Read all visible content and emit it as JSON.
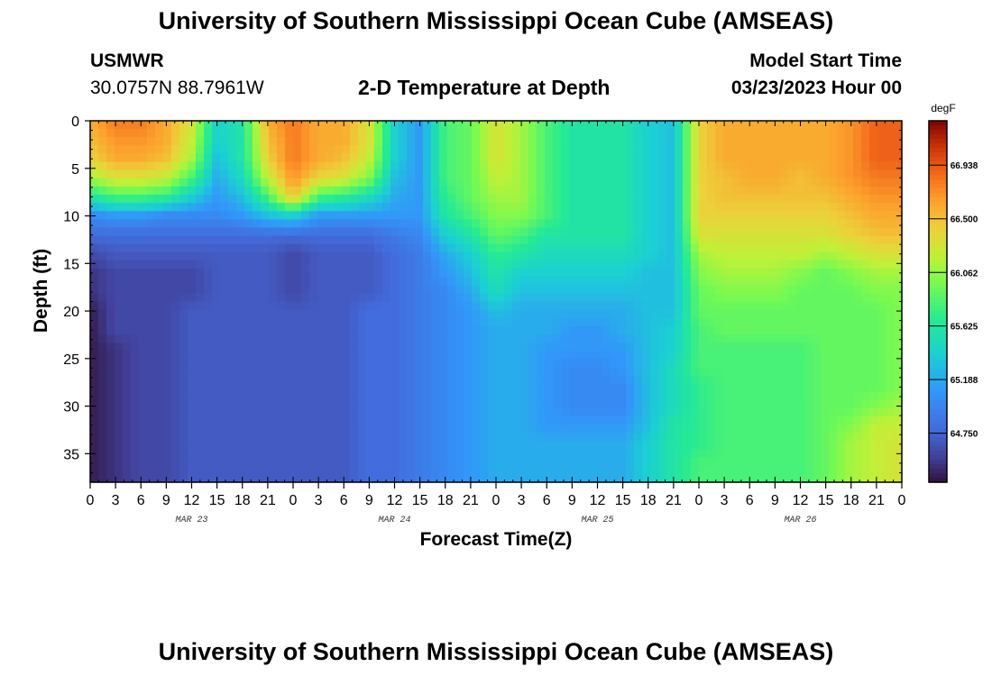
{
  "title": "University of Southern Mississippi Ocean Cube (AMSEAS)",
  "footer_title": "University of Southern Mississippi Ocean Cube (AMSEAS)",
  "station": {
    "name": "USMWR",
    "coords": "30.0757N  88.7961W"
  },
  "subtitle": "2-D Temperature at Depth",
  "model_start": {
    "label": "Model Start Time",
    "value": "03/23/2023 Hour 00"
  },
  "chart_data": {
    "type": "heatmap",
    "xlabel": "Forecast Time(Z)",
    "ylabel": "Depth (ft)",
    "x_unit": "forecast hours from model start",
    "xlim": [
      0,
      96
    ],
    "ylim": [
      0,
      38
    ],
    "y_inverted": true,
    "x_tick_labels": [
      "0",
      "3",
      "6",
      "9",
      "12",
      "15",
      "18",
      "21",
      "0",
      "3",
      "6",
      "9",
      "12",
      "15",
      "18",
      "21",
      "0",
      "3",
      "6",
      "9",
      "12",
      "15",
      "18",
      "21",
      "0",
      "3",
      "6",
      "9",
      "12",
      "15",
      "18",
      "21",
      "0"
    ],
    "y_ticks": [
      0,
      5,
      10,
      15,
      20,
      25,
      30,
      35
    ],
    "date_labels": [
      {
        "label": "MAR 23",
        "hour": 12
      },
      {
        "label": "MAR 24",
        "hour": 36
      },
      {
        "label": "MAR 25",
        "hour": 60
      },
      {
        "label": "MAR 26",
        "hour": 84
      }
    ],
    "colorbar": {
      "unit": "degF",
      "min": 64.35,
      "max": 67.3,
      "ticks": [
        66.938,
        66.5,
        66.062,
        65.625,
        65.188,
        64.75
      ],
      "tick_labels": [
        "66.938",
        "66.500",
        "66.062",
        "65.625",
        "65.188",
        "64.750"
      ]
    },
    "grid_hours": [
      0,
      3,
      6,
      9,
      12,
      15,
      18,
      21,
      24,
      27,
      30,
      33,
      36,
      39,
      42,
      45,
      48,
      51,
      54,
      57,
      60,
      63,
      66,
      69,
      72,
      75,
      78,
      81,
      84,
      87,
      90,
      93,
      96
    ],
    "grid_depths_ft": [
      0,
      2,
      4,
      6,
      8,
      10,
      12,
      14,
      16,
      18,
      20,
      22,
      24,
      26,
      28,
      30,
      32,
      34,
      36,
      38
    ],
    "values_degF": [
      [
        66.6,
        66.8,
        66.8,
        66.6,
        66.3,
        65.4,
        65.6,
        66.6,
        66.8,
        66.6,
        66.6,
        66.3,
        65.4,
        65.1,
        65.8,
        65.9,
        66.3,
        66.1,
        65.8,
        65.6,
        65.6,
        65.6,
        65.4,
        65.3,
        66.4,
        66.6,
        66.6,
        66.6,
        66.6,
        66.6,
        66.7,
        66.9,
        66.9
      ],
      [
        66.5,
        66.7,
        66.7,
        66.6,
        66.2,
        65.4,
        65.6,
        66.5,
        66.8,
        66.6,
        66.6,
        66.3,
        65.4,
        65.1,
        65.8,
        65.9,
        66.3,
        66.1,
        65.8,
        65.6,
        65.6,
        65.6,
        65.4,
        65.3,
        66.4,
        66.6,
        66.6,
        66.6,
        66.6,
        66.6,
        66.7,
        66.9,
        66.9
      ],
      [
        66.4,
        66.6,
        66.6,
        66.5,
        66.1,
        65.3,
        65.6,
        66.4,
        66.8,
        66.6,
        66.5,
        66.2,
        65.4,
        65.1,
        65.8,
        65.9,
        66.3,
        66.1,
        65.8,
        65.6,
        65.6,
        65.6,
        65.4,
        65.3,
        66.4,
        66.6,
        66.6,
        66.6,
        66.6,
        66.6,
        66.7,
        66.9,
        66.9
      ],
      [
        66.1,
        66.3,
        66.3,
        66.2,
        65.8,
        65.2,
        65.5,
        66.2,
        66.7,
        66.4,
        66.3,
        66.0,
        65.3,
        65.1,
        65.8,
        65.9,
        66.2,
        66.1,
        65.8,
        65.6,
        65.6,
        65.6,
        65.4,
        65.3,
        66.4,
        66.5,
        66.6,
        66.6,
        66.5,
        66.6,
        66.7,
        66.8,
        66.8
      ],
      [
        65.6,
        65.8,
        65.8,
        65.7,
        65.4,
        65.1,
        65.3,
        65.8,
        66.5,
        65.8,
        65.7,
        65.5,
        65.2,
        65.1,
        65.7,
        65.9,
        66.1,
        66.1,
        65.8,
        65.6,
        65.6,
        65.6,
        65.4,
        65.3,
        66.4,
        66.5,
        66.5,
        66.5,
        66.5,
        66.5,
        66.6,
        66.7,
        66.7
      ],
      [
        65.0,
        65.1,
        65.1,
        65.0,
        65.0,
        65.0,
        65.1,
        65.3,
        65.4,
        65.1,
        65.1,
        65.1,
        65.1,
        65.1,
        65.6,
        65.8,
        66.0,
        66.0,
        65.8,
        65.6,
        65.6,
        65.6,
        65.4,
        65.3,
        66.4,
        66.4,
        66.4,
        66.4,
        66.4,
        66.4,
        66.5,
        66.6,
        66.6
      ],
      [
        64.8,
        64.8,
        64.8,
        64.8,
        64.8,
        64.8,
        64.8,
        64.8,
        64.8,
        64.8,
        64.8,
        64.8,
        64.9,
        65.0,
        65.4,
        65.6,
        65.9,
        65.8,
        65.6,
        65.6,
        65.6,
        65.6,
        65.4,
        65.3,
        66.3,
        66.3,
        66.3,
        66.3,
        66.3,
        66.3,
        66.4,
        66.5,
        66.5
      ],
      [
        64.6,
        64.7,
        64.7,
        64.7,
        64.7,
        64.7,
        64.7,
        64.7,
        64.6,
        64.7,
        64.7,
        64.7,
        64.8,
        64.9,
        65.2,
        65.4,
        65.7,
        65.6,
        65.5,
        65.5,
        65.5,
        65.5,
        65.4,
        65.3,
        66.1,
        66.2,
        66.2,
        66.2,
        66.2,
        66.1,
        66.2,
        66.3,
        66.3
      ],
      [
        64.5,
        64.6,
        64.6,
        64.6,
        64.6,
        64.7,
        64.7,
        64.7,
        64.6,
        64.7,
        64.7,
        64.7,
        64.8,
        64.9,
        65.1,
        65.3,
        65.6,
        65.4,
        65.4,
        65.4,
        65.4,
        65.4,
        65.3,
        65.3,
        66.0,
        66.1,
        66.1,
        66.1,
        66.0,
        65.9,
        66.0,
        66.1,
        66.1
      ],
      [
        64.5,
        64.6,
        64.6,
        64.6,
        64.6,
        64.7,
        64.7,
        64.7,
        64.6,
        64.7,
        64.7,
        64.7,
        64.8,
        64.9,
        65.0,
        65.2,
        65.5,
        65.3,
        65.3,
        65.3,
        65.3,
        65.3,
        65.3,
        65.3,
        65.9,
        66.0,
        66.0,
        66.0,
        65.9,
        65.9,
        65.9,
        66.0,
        66.0
      ],
      [
        64.4,
        64.6,
        64.6,
        64.6,
        64.7,
        64.7,
        64.7,
        64.7,
        64.7,
        64.7,
        64.7,
        64.8,
        64.8,
        64.9,
        65.0,
        65.1,
        65.3,
        65.2,
        65.2,
        65.2,
        65.2,
        65.2,
        65.3,
        65.3,
        65.9,
        65.9,
        65.9,
        65.9,
        65.9,
        65.9,
        65.9,
        65.9,
        66.0
      ],
      [
        64.4,
        64.6,
        64.6,
        64.6,
        64.7,
        64.7,
        64.7,
        64.7,
        64.7,
        64.7,
        64.7,
        64.8,
        64.8,
        64.9,
        65.0,
        65.1,
        65.2,
        65.2,
        65.2,
        65.1,
        65.1,
        65.2,
        65.3,
        65.4,
        65.8,
        65.9,
        65.9,
        65.9,
        65.9,
        65.9,
        65.9,
        65.9,
        66.0
      ],
      [
        64.4,
        64.5,
        64.6,
        64.6,
        64.7,
        64.7,
        64.7,
        64.7,
        64.7,
        64.7,
        64.7,
        64.8,
        64.8,
        64.9,
        65.0,
        65.1,
        65.2,
        65.2,
        65.1,
        65.1,
        65.1,
        65.1,
        65.3,
        65.4,
        65.8,
        65.8,
        65.8,
        65.8,
        65.8,
        65.9,
        65.9,
        65.9,
        66.0
      ],
      [
        64.4,
        64.5,
        64.6,
        64.6,
        64.7,
        64.7,
        64.7,
        64.7,
        64.7,
        64.7,
        64.7,
        64.8,
        64.8,
        64.9,
        65.0,
        65.1,
        65.2,
        65.2,
        65.1,
        65.0,
        65.0,
        65.1,
        65.3,
        65.5,
        65.8,
        65.8,
        65.8,
        65.8,
        65.8,
        65.9,
        65.9,
        65.9,
        66.0
      ],
      [
        64.4,
        64.5,
        64.6,
        64.6,
        64.7,
        64.7,
        64.7,
        64.7,
        64.7,
        64.7,
        64.7,
        64.8,
        64.8,
        64.9,
        65.0,
        65.1,
        65.2,
        65.2,
        65.1,
        65.0,
        65.0,
        65.0,
        65.3,
        65.5,
        65.7,
        65.8,
        65.8,
        65.8,
        65.8,
        65.9,
        65.9,
        65.9,
        66.0
      ],
      [
        64.4,
        64.5,
        64.6,
        64.6,
        64.7,
        64.7,
        64.7,
        64.7,
        64.7,
        64.7,
        64.7,
        64.8,
        64.8,
        64.9,
        65.0,
        65.1,
        65.2,
        65.2,
        65.1,
        65.0,
        65.0,
        65.0,
        65.3,
        65.5,
        65.7,
        65.8,
        65.8,
        65.8,
        65.8,
        65.9,
        65.9,
        66.0,
        66.1
      ],
      [
        64.4,
        64.5,
        64.6,
        64.6,
        64.7,
        64.7,
        64.7,
        64.7,
        64.7,
        64.7,
        64.7,
        64.8,
        64.8,
        64.9,
        65.0,
        65.1,
        65.2,
        65.2,
        65.1,
        65.1,
        65.1,
        65.1,
        65.3,
        65.6,
        65.7,
        65.8,
        65.8,
        65.8,
        65.8,
        65.9,
        66.0,
        66.2,
        66.2
      ],
      [
        64.4,
        64.5,
        64.6,
        64.6,
        64.7,
        64.7,
        64.7,
        64.7,
        64.7,
        64.7,
        64.7,
        64.8,
        64.8,
        64.9,
        65.0,
        65.1,
        65.2,
        65.2,
        65.2,
        65.2,
        65.2,
        65.2,
        65.4,
        65.6,
        65.7,
        65.8,
        65.8,
        65.8,
        65.8,
        65.9,
        66.1,
        66.2,
        66.3
      ],
      [
        64.4,
        64.5,
        64.6,
        64.6,
        64.7,
        64.7,
        64.7,
        64.7,
        64.7,
        64.7,
        64.7,
        64.8,
        64.8,
        64.9,
        65.0,
        65.1,
        65.2,
        65.2,
        65.2,
        65.2,
        65.2,
        65.2,
        65.4,
        65.6,
        65.8,
        65.8,
        65.8,
        65.8,
        65.8,
        65.9,
        66.1,
        66.2,
        66.3
      ],
      [
        64.4,
        64.5,
        64.6,
        64.6,
        64.7,
        64.7,
        64.7,
        64.7,
        64.7,
        64.7,
        64.7,
        64.8,
        64.8,
        64.9,
        65.0,
        65.1,
        65.2,
        65.2,
        65.2,
        65.2,
        65.2,
        65.2,
        65.4,
        65.6,
        65.8,
        65.8,
        65.8,
        65.8,
        65.8,
        65.9,
        66.1,
        66.2,
        66.3
      ]
    ]
  }
}
